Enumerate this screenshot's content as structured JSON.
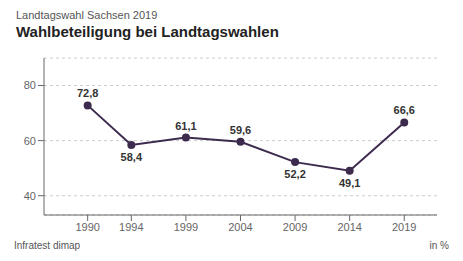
{
  "chart_data": {
    "type": "line",
    "title": "Wahlbeteiligung bei Landtagswahlen",
    "subtitle": "Landtagswahl Sachsen 2019",
    "x": [
      1990,
      1994,
      1999,
      2004,
      2009,
      2014,
      2019
    ],
    "values": [
      72.8,
      58.4,
      61.1,
      59.6,
      52.2,
      49.1,
      66.6
    ],
    "value_labels": [
      "72,8",
      "58,4",
      "61,1",
      "59,6",
      "52,2",
      "49,1",
      "66,6"
    ],
    "data_labels": true,
    "color": "#3d2b4e",
    "xlim": [
      1986,
      2022
    ],
    "xticks": [
      1990,
      1994,
      1999,
      2004,
      2009,
      2014,
      2019
    ],
    "ylim": [
      33,
      90
    ],
    "yticks": [
      40,
      60,
      80
    ],
    "grid": true,
    "annotations": [
      "Infratest dimap",
      "in %"
    ]
  }
}
